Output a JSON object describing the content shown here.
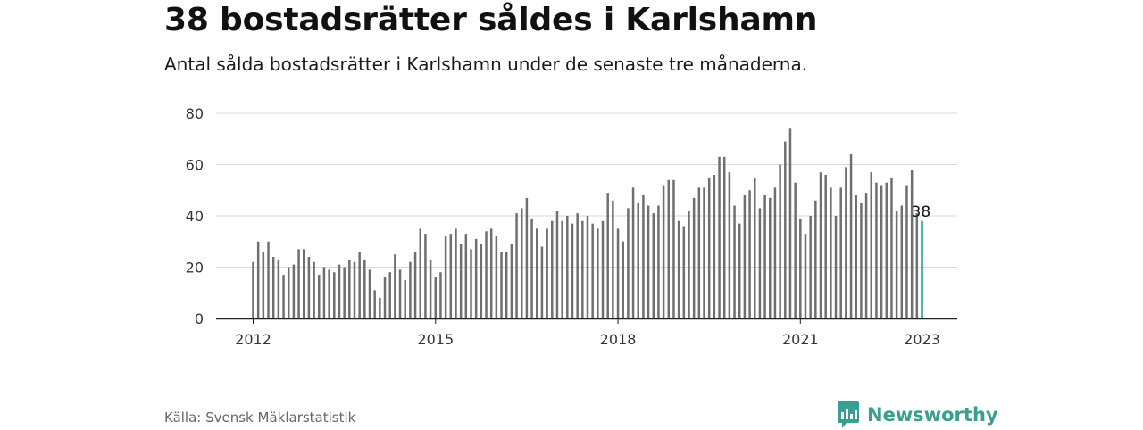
{
  "title": "38 bostadsrätter såldes i Karlshamn",
  "subtitle": "Antal sålda bostadsrätter i Karlshamn under de senaste tre månaderna.",
  "source": "Källa: Svensk Mäklarstatistik",
  "brand": "Newsworthy",
  "colors": {
    "bar": "#6f6f6f",
    "highlight": "#1a9e8e",
    "grid": "#d9d9d9",
    "brand": "#3a9e90"
  },
  "chart_data": {
    "type": "bar",
    "title": "38 bostadsrätter såldes i Karlshamn",
    "subtitle": "Antal sålda bostadsrätter i Karlshamn under de senaste tre månaderna.",
    "xlabel": "",
    "ylabel": "",
    "ylim": [
      0,
      80
    ],
    "yticks": [
      0,
      20,
      40,
      60,
      80
    ],
    "xtick_labels": [
      "2012",
      "2015",
      "2018",
      "2021",
      "2023"
    ],
    "x_start": "2012-01",
    "x_end": "2023-01",
    "frequency": "monthly",
    "grid": true,
    "annotation": {
      "x": "2023-01",
      "text": "38"
    },
    "values": [
      22,
      30,
      26,
      30,
      24,
      23,
      17,
      20,
      21,
      27,
      27,
      24,
      22,
      17,
      20,
      19,
      18,
      21,
      20,
      23,
      22,
      26,
      23,
      19,
      11,
      8,
      16,
      18,
      25,
      19,
      15,
      22,
      26,
      35,
      33,
      23,
      16,
      18,
      32,
      33,
      35,
      29,
      33,
      27,
      31,
      29,
      34,
      35,
      32,
      26,
      26,
      29,
      41,
      43,
      47,
      39,
      35,
      28,
      35,
      38,
      42,
      38,
      40,
      37,
      41,
      38,
      40,
      37,
      35,
      38,
      49,
      46,
      35,
      30,
      43,
      51,
      45,
      48,
      44,
      41,
      44,
      52,
      54,
      54,
      38,
      36,
      42,
      47,
      51,
      51,
      55,
      56,
      63,
      63,
      57,
      44,
      37,
      48,
      50,
      55,
      43,
      48,
      47,
      51,
      60,
      69,
      74,
      53,
      39,
      33,
      40,
      46,
      57,
      56,
      51,
      40,
      51,
      59,
      64,
      48,
      45,
      49,
      57,
      53,
      52,
      53,
      55,
      42,
      44,
      52,
      58,
      41,
      38
    ]
  }
}
